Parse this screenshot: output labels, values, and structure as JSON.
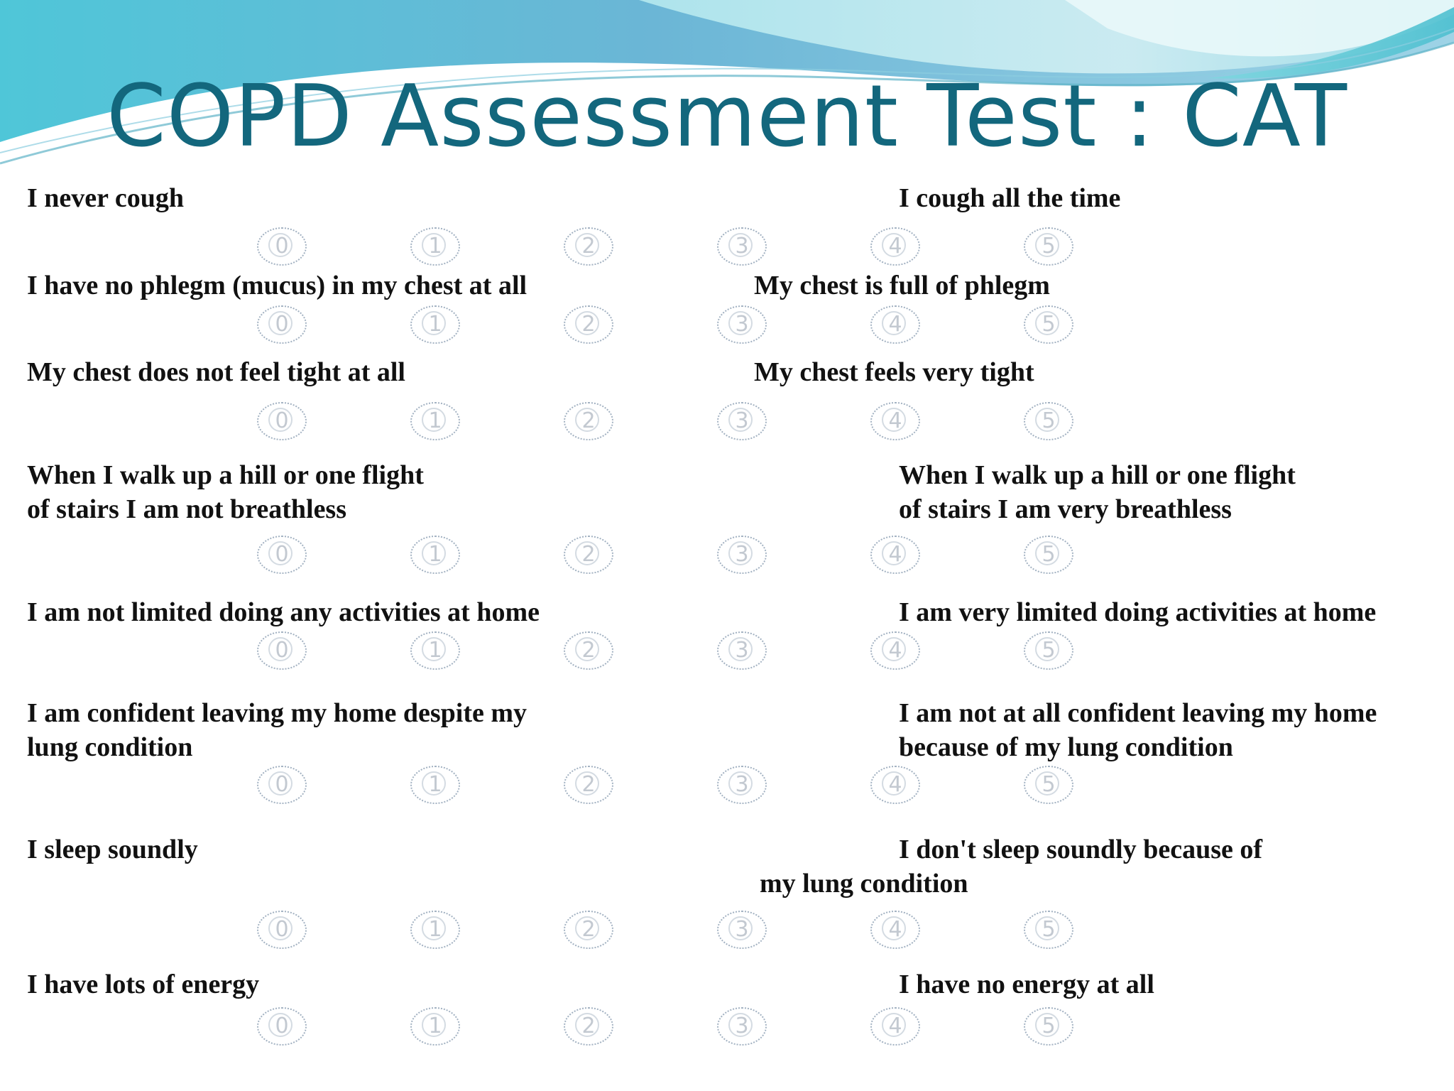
{
  "title": "COPD Assessment Test : CAT",
  "items": [
    {
      "left_lines": [
        "I never cough"
      ],
      "right_lines": [
        "I cough all the time"
      ],
      "options": [
        "0",
        "1",
        "2",
        "3",
        "4",
        "5"
      ]
    },
    {
      "left_lines": [
        "I have no phlegm (mucus) in my chest at all"
      ],
      "right_lines": [
        "My chest is full of phlegm"
      ],
      "options": [
        "0",
        "1",
        "2",
        "3",
        "4",
        "5"
      ]
    },
    {
      "left_lines": [
        "My chest does not feel tight at all"
      ],
      "right_lines": [
        "My chest feels very tight"
      ],
      "options": [
        "0",
        "1",
        "2",
        "3",
        "4",
        "5"
      ]
    },
    {
      "left_lines": [
        "When I walk up a hill or one flight",
        "of stairs I am not breathless"
      ],
      "right_lines": [
        "When I walk up a hill or one flight",
        "of stairs I am very breathless"
      ],
      "options": [
        "0",
        "1",
        "2",
        "3",
        "4",
        "5"
      ]
    },
    {
      "left_lines": [
        "I am not limited doing any activities at home"
      ],
      "right_lines": [
        "I am very limited doing activities at home"
      ],
      "options": [
        "0",
        "1",
        "2",
        "3",
        "4",
        "5"
      ]
    },
    {
      "left_lines": [
        "I am confident leaving my home despite my",
        "lung condition"
      ],
      "right_lines": [
        "I am not at all confident leaving my home",
        "because of my lung condition"
      ],
      "options": [
        "0",
        "1",
        "2",
        "3",
        "4",
        "5"
      ]
    },
    {
      "left_lines": [
        "I sleep soundly"
      ],
      "right_lines": [
        "I don't sleep soundly because of",
        "my lung condition"
      ],
      "options": [
        "0",
        "1",
        "2",
        "3",
        "4",
        "5"
      ]
    },
    {
      "left_lines": [
        "I have lots of energy"
      ],
      "right_lines": [
        "I have no energy at all"
      ],
      "options": [
        "0",
        "1",
        "2",
        "3",
        "4",
        "5"
      ]
    }
  ]
}
